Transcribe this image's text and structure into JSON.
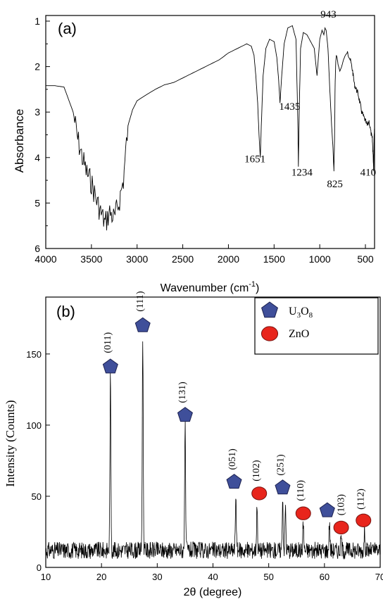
{
  "chart_data": [
    {
      "panel_label": "(a)",
      "type": "line",
      "xlabel": "Wavenumber (cm",
      "xlabel_sup": "-1",
      "xlabel_close": ")",
      "ylabel": "Absorbance",
      "xlim": [
        4000,
        400
      ],
      "ylim": [
        6,
        1
      ],
      "y_inverted": true,
      "x_ticks": [
        4000,
        3500,
        3000,
        2500,
        2000,
        1500,
        1000,
        500
      ],
      "y_ticks": [
        1,
        2,
        3,
        4,
        5,
        6
      ],
      "line_color": "#000000",
      "series": [
        {
          "x": [
            4000,
            3900,
            3800,
            3700,
            3650,
            3600,
            3550,
            3500,
            3450,
            3400,
            3350,
            3300,
            3250,
            3200,
            3150,
            3100,
            3050,
            3000,
            2900,
            2800,
            2700,
            2600,
            2500,
            2400,
            2300,
            2200,
            2100,
            2000,
            1900,
            1800,
            1750,
            1720,
            1700,
            1680,
            1665,
            1651,
            1640,
            1620,
            1590,
            1550,
            1500,
            1470,
            1450,
            1435,
            1420,
            1390,
            1350,
            1300,
            1260,
            1240,
            1234,
            1225,
            1210,
            1180,
            1140,
            1100,
            1060,
            1030,
            1000,
            975,
            955,
            943,
            930,
            910,
            890,
            870,
            855,
            845,
            838,
            832,
            825,
            818,
            810,
            800,
            780,
            760,
            740,
            720,
            700,
            680,
            660,
            640,
            620,
            600,
            580,
            560,
            540,
            520,
            500,
            480,
            460,
            440,
            425,
            418,
            410,
            405,
            400
          ],
          "y": [
            2.42,
            2.42,
            2.45,
            3.0,
            3.6,
            4.0,
            4.35,
            4.55,
            4.9,
            5.2,
            5.45,
            5.2,
            5.35,
            5.0,
            4.5,
            3.3,
            2.95,
            2.75,
            2.62,
            2.5,
            2.4,
            2.35,
            2.25,
            2.15,
            2.05,
            1.95,
            1.85,
            1.7,
            1.6,
            1.5,
            1.55,
            1.75,
            2.2,
            2.8,
            3.5,
            4.0,
            3.3,
            2.2,
            1.6,
            1.4,
            1.45,
            1.8,
            2.3,
            2.8,
            2.3,
            1.5,
            1.15,
            1.1,
            1.4,
            3.2,
            4.2,
            3.0,
            1.6,
            1.25,
            1.3,
            1.45,
            1.6,
            2.2,
            1.4,
            1.2,
            1.3,
            1.15,
            1.2,
            1.6,
            2.5,
            3.3,
            3.8,
            4.3,
            3.6,
            2.4,
            1.9,
            1.75,
            1.8,
            1.95,
            2.1,
            2.0,
            1.85,
            1.75,
            1.7,
            1.75,
            1.9,
            2.1,
            2.4,
            2.5,
            2.6,
            2.8,
            3.0,
            3.1,
            3.2,
            3.3,
            3.2,
            3.45,
            3.6,
            3.85,
            4.25,
            3.5,
            3.3
          ]
        }
      ],
      "annotations": [
        {
          "text": "943",
          "x": 905,
          "y": 0.92
        },
        {
          "text": "1435",
          "x": 1330,
          "y": 2.95
        },
        {
          "text": "1651",
          "x": 1710,
          "y": 4.1
        },
        {
          "text": "1234",
          "x": 1195,
          "y": 4.4
        },
        {
          "text": "825",
          "x": 835,
          "y": 4.65
        },
        {
          "text": "410",
          "x": 470,
          "y": 4.4
        }
      ]
    },
    {
      "panel_label": "(b)",
      "type": "line",
      "xlabel": "2θ (degree)",
      "ylabel": "Intensity (Counts)",
      "xlim": [
        10,
        70
      ],
      "ylim": [
        0,
        190
      ],
      "x_ticks": [
        10,
        20,
        30,
        40,
        50,
        60,
        70
      ],
      "y_ticks": [
        0,
        50,
        100,
        150
      ],
      "baseline": 12,
      "noise_amplitude": 6,
      "peaks": [
        {
          "x": 21.6,
          "height": 135
        },
        {
          "x": 27.4,
          "height": 164
        },
        {
          "x": 35.0,
          "height": 100
        },
        {
          "x": 44.1,
          "height": 52
        },
        {
          "x": 47.9,
          "height": 45
        },
        {
          "x": 52.5,
          "height": 49
        },
        {
          "x": 53.0,
          "height": 42
        },
        {
          "x": 56.2,
          "height": 32
        },
        {
          "x": 60.9,
          "height": 32
        },
        {
          "x": 63.0,
          "height": 22
        },
        {
          "x": 67.2,
          "height": 26
        }
      ],
      "markers": [
        {
          "x": 21.6,
          "y": 141,
          "shape": "pentagon",
          "label": "(011)",
          "label_x": 21.6,
          "label_y": 158
        },
        {
          "x": 27.4,
          "y": 170,
          "shape": "pentagon",
          "label": "(111)",
          "label_x": 27.4,
          "label_y": 187
        },
        {
          "x": 35.0,
          "y": 107,
          "shape": "pentagon",
          "label": "(131)",
          "label_x": 35.0,
          "label_y": 123
        },
        {
          "x": 43.8,
          "y": 60,
          "shape": "pentagon",
          "label": "(051)",
          "label_x": 44.0,
          "label_y": 76
        },
        {
          "x": 48.3,
          "y": 52,
          "shape": "circle",
          "label": "(102)",
          "label_x": 48.3,
          "label_y": 68
        },
        {
          "x": 52.5,
          "y": 56,
          "shape": "pentagon",
          "label": "(251)",
          "label_x": 52.6,
          "label_y": 72
        },
        {
          "x": 56.2,
          "y": 38,
          "shape": "circle",
          "label": "(110)",
          "label_x": 56.2,
          "label_y": 54
        },
        {
          "x": 60.5,
          "y": 40,
          "shape": "pentagon",
          "label": "",
          "label_x": 0,
          "label_y": 0
        },
        {
          "x": 63.0,
          "y": 28,
          "shape": "circle",
          "label": "(103)",
          "label_x": 63.5,
          "label_y": 44
        },
        {
          "x": 67.0,
          "y": 33,
          "shape": "circle",
          "label": "(112)",
          "label_x": 67.0,
          "label_y": 48
        }
      ],
      "legend": {
        "placement": "top-right",
        "entries": [
          {
            "shape": "pentagon",
            "label": "U",
            "sub1": "3",
            "mid": "O",
            "sub2": "8"
          },
          {
            "shape": "circle",
            "label": "ZnO"
          }
        ]
      },
      "colors": {
        "pentagon_fill": "#3f4f9a",
        "pentagon_stroke": "#1d2250",
        "circle_fill": "#e8251c",
        "circle_stroke": "#7a1410"
      }
    }
  ]
}
